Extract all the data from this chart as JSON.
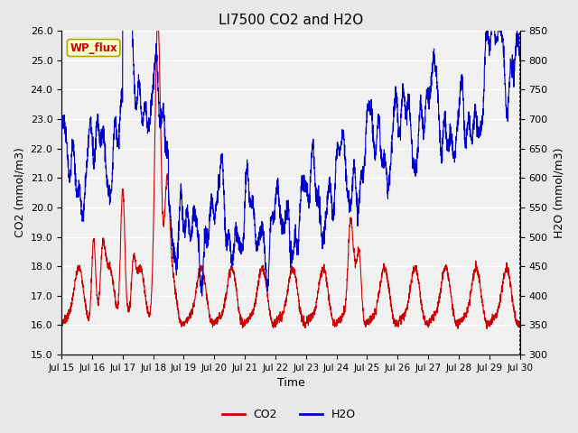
{
  "title": "LI7500 CO2 and H2O",
  "xlabel": "Time",
  "ylabel_left": "CO2 (mmol/m3)",
  "ylabel_right": "H2O (mmol/m3)",
  "ylim_left": [
    15.0,
    26.0
  ],
  "ylim_right": [
    300,
    850
  ],
  "yticks_left": [
    15.0,
    16.0,
    17.0,
    18.0,
    19.0,
    20.0,
    21.0,
    22.0,
    23.0,
    24.0,
    25.0,
    26.0
  ],
  "yticks_right": [
    300,
    350,
    400,
    450,
    500,
    550,
    600,
    650,
    700,
    750,
    800,
    850
  ],
  "xtick_labels": [
    "Jul 15",
    "Jul 16",
    "Jul 17",
    "Jul 18",
    "Jul 19",
    "Jul 20",
    "Jul 21",
    "Jul 22",
    "Jul 23",
    "Jul 24",
    "Jul 25",
    "Jul 26",
    "Jul 27",
    "Jul 28",
    "Jul 29",
    "Jul 30"
  ],
  "co2_color": "#cc0000",
  "h2o_color": "#0000cc",
  "bg_color": "#e8e8e8",
  "plot_bg_color": "#f0f0f0",
  "annotation_text": "WP_flux",
  "annotation_color": "#cc0000",
  "annotation_bg": "#ffffcc",
  "line_width": 0.8
}
